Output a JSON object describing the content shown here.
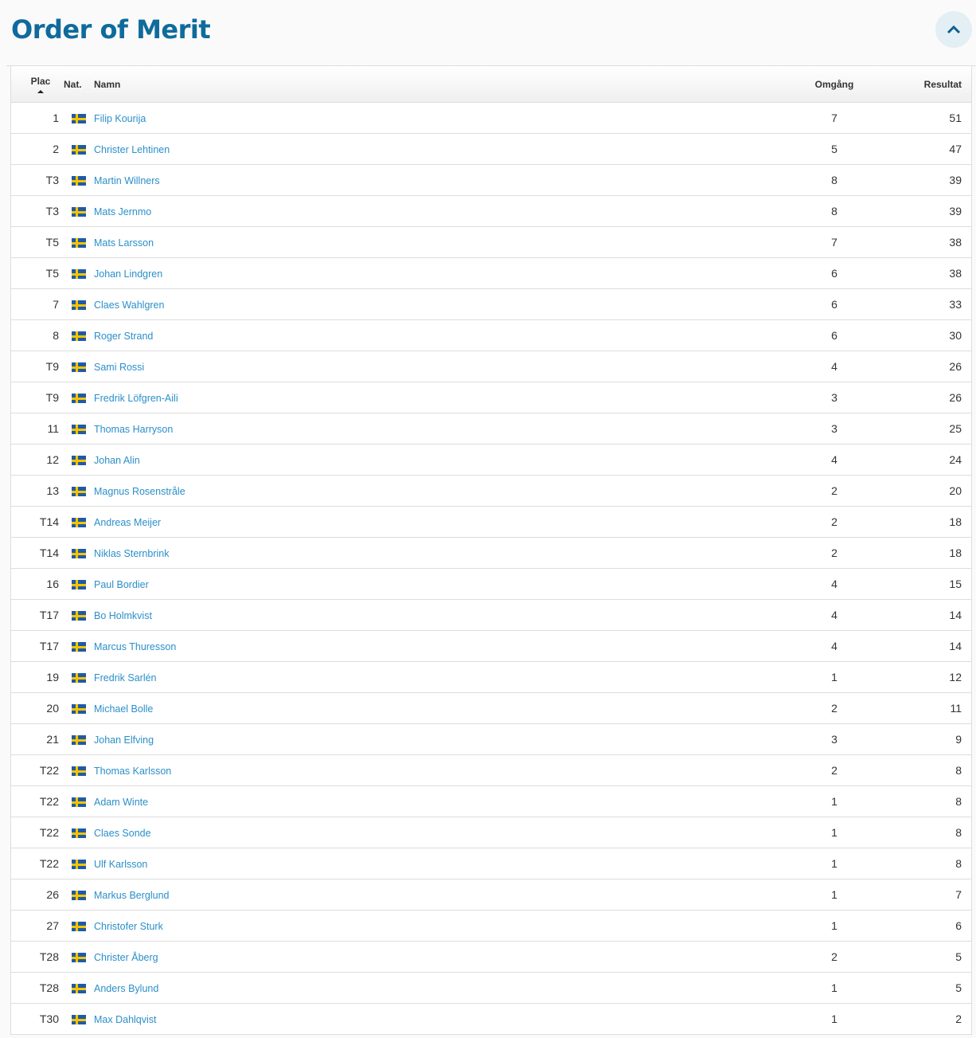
{
  "title": "Order of Merit",
  "colors": {
    "title": "#0f6b9c",
    "link": "#2a8fca",
    "flag_blue": "#1f5aa6",
    "flag_yellow": "#f5c400"
  },
  "headers": {
    "plac": "Plac",
    "nat": "Nat.",
    "name": "Namn",
    "rounds": "Omgång",
    "result": "Resultat"
  },
  "sort": {
    "column": "Plac",
    "direction": "ascending"
  },
  "rows": [
    {
      "plac": "1",
      "nat": "SWE",
      "name": "Filip Kourija",
      "rounds": "7",
      "result": "51"
    },
    {
      "plac": "2",
      "nat": "SWE",
      "name": "Christer Lehtinen",
      "rounds": "5",
      "result": "47"
    },
    {
      "plac": "T3",
      "nat": "SWE",
      "name": "Martin Willners",
      "rounds": "8",
      "result": "39"
    },
    {
      "plac": "T3",
      "nat": "SWE",
      "name": "Mats Jernmo",
      "rounds": "8",
      "result": "39"
    },
    {
      "plac": "T5",
      "nat": "SWE",
      "name": "Mats Larsson",
      "rounds": "7",
      "result": "38"
    },
    {
      "plac": "T5",
      "nat": "SWE",
      "name": "Johan Lindgren",
      "rounds": "6",
      "result": "38"
    },
    {
      "plac": "7",
      "nat": "SWE",
      "name": "Claes Wahlgren",
      "rounds": "6",
      "result": "33"
    },
    {
      "plac": "8",
      "nat": "SWE",
      "name": "Roger Strand",
      "rounds": "6",
      "result": "30"
    },
    {
      "plac": "T9",
      "nat": "SWE",
      "name": "Sami Rossi",
      "rounds": "4",
      "result": "26"
    },
    {
      "plac": "T9",
      "nat": "SWE",
      "name": "Fredrik Löfgren-Aili",
      "rounds": "3",
      "result": "26"
    },
    {
      "plac": "11",
      "nat": "SWE",
      "name": "Thomas Harryson",
      "rounds": "3",
      "result": "25"
    },
    {
      "plac": "12",
      "nat": "SWE",
      "name": "Johan Alin",
      "rounds": "4",
      "result": "24"
    },
    {
      "plac": "13",
      "nat": "SWE",
      "name": "Magnus Rosenstråle",
      "rounds": "2",
      "result": "20"
    },
    {
      "plac": "T14",
      "nat": "SWE",
      "name": "Andreas Meijer",
      "rounds": "2",
      "result": "18"
    },
    {
      "plac": "T14",
      "nat": "SWE",
      "name": "Niklas Sternbrink",
      "rounds": "2",
      "result": "18"
    },
    {
      "plac": "16",
      "nat": "SWE",
      "name": "Paul Bordier",
      "rounds": "4",
      "result": "15"
    },
    {
      "plac": "T17",
      "nat": "SWE",
      "name": "Bo Holmkvist",
      "rounds": "4",
      "result": "14"
    },
    {
      "plac": "T17",
      "nat": "SWE",
      "name": "Marcus Thuresson",
      "rounds": "4",
      "result": "14"
    },
    {
      "plac": "19",
      "nat": "SWE",
      "name": "Fredrik Sarlén",
      "rounds": "1",
      "result": "12"
    },
    {
      "plac": "20",
      "nat": "SWE",
      "name": "Michael Bolle",
      "rounds": "2",
      "result": "11"
    },
    {
      "plac": "21",
      "nat": "SWE",
      "name": "Johan Elfving",
      "rounds": "3",
      "result": "9"
    },
    {
      "plac": "T22",
      "nat": "SWE",
      "name": "Thomas Karlsson",
      "rounds": "2",
      "result": "8"
    },
    {
      "plac": "T22",
      "nat": "SWE",
      "name": "Adam Winte",
      "rounds": "1",
      "result": "8"
    },
    {
      "plac": "T22",
      "nat": "SWE",
      "name": "Claes Sonde",
      "rounds": "1",
      "result": "8"
    },
    {
      "plac": "T22",
      "nat": "SWE",
      "name": "Ulf Karlsson",
      "rounds": "1",
      "result": "8"
    },
    {
      "plac": "26",
      "nat": "SWE",
      "name": "Markus Berglund",
      "rounds": "1",
      "result": "7"
    },
    {
      "plac": "27",
      "nat": "SWE",
      "name": "Christofer Sturk",
      "rounds": "1",
      "result": "6"
    },
    {
      "plac": "T28",
      "nat": "SWE",
      "name": "Christer Åberg",
      "rounds": "2",
      "result": "5"
    },
    {
      "plac": "T28",
      "nat": "SWE",
      "name": "Anders Bylund",
      "rounds": "1",
      "result": "5"
    },
    {
      "plac": "T30",
      "nat": "SWE",
      "name": "Max Dahlqvist",
      "rounds": "1",
      "result": "2"
    }
  ]
}
